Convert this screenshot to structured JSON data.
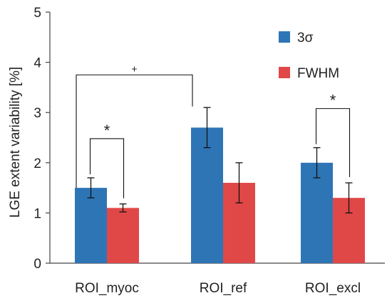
{
  "chart_data": {
    "type": "bar",
    "categories": [
      "ROI_myoc",
      "ROI_ref",
      "ROI_excl"
    ],
    "series": [
      {
        "name": "3σ",
        "color": "#2E75B6",
        "values": [
          1.5,
          2.7,
          2.0
        ],
        "errors": [
          0.2,
          0.4,
          0.3
        ]
      },
      {
        "name": "FWHM",
        "color": "#E04848",
        "values": [
          1.1,
          1.6,
          1.3
        ],
        "errors": [
          0.08,
          0.4,
          0.3
        ]
      }
    ],
    "ylabel": "LGE extent variability [%]",
    "ylim": [
      0,
      5
    ],
    "yticks": [
      0,
      1,
      2,
      3,
      4,
      5
    ],
    "grid": false,
    "legend_position": "top-right",
    "significance": [
      {
        "label": "*",
        "category": 0,
        "between": "series"
      },
      {
        "label": "+",
        "between_categories": [
          0,
          1
        ],
        "series": 0
      },
      {
        "label": "*",
        "category": 2,
        "between": "series"
      }
    ]
  }
}
